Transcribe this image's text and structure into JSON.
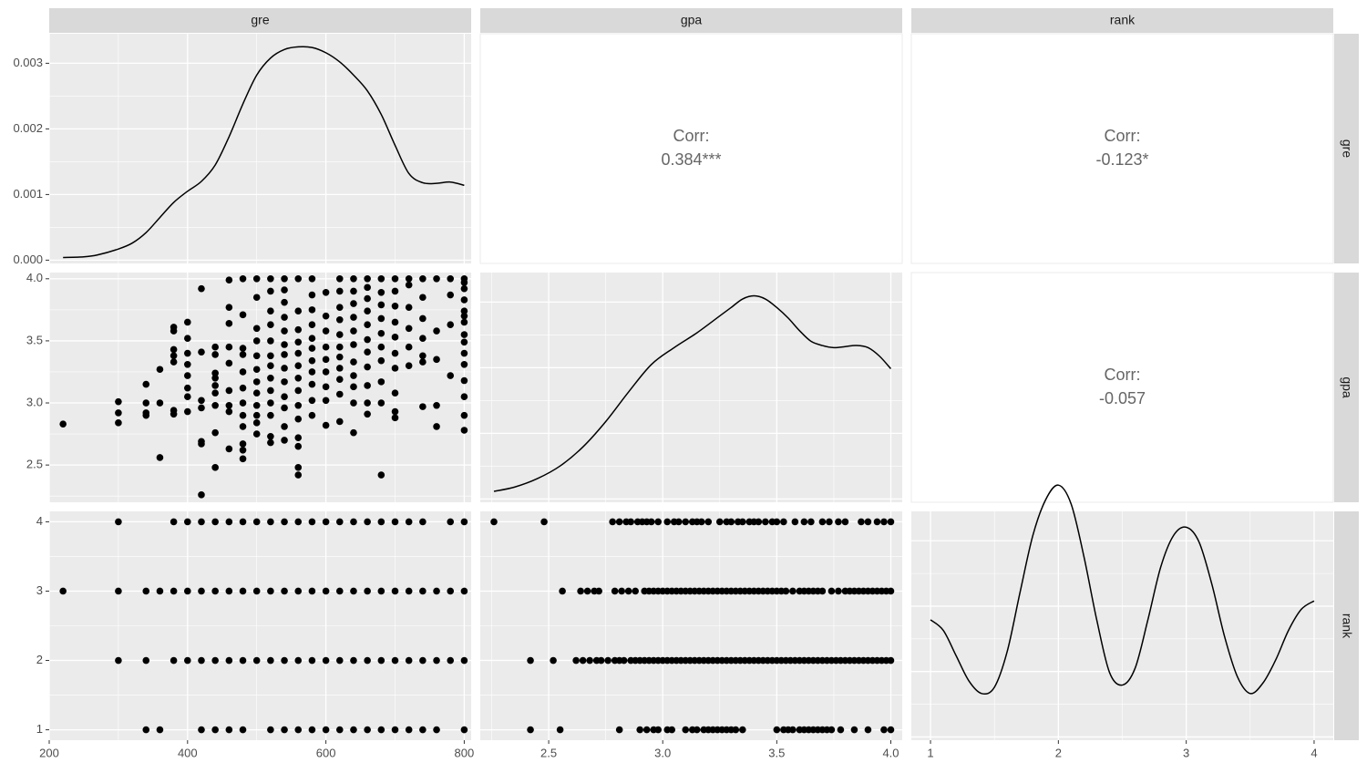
{
  "chart_data": {
    "type": "scatter",
    "variables": [
      "gre",
      "gpa",
      "rank"
    ],
    "column_strips": [
      "gre",
      "gpa",
      "rank"
    ],
    "row_strips": [
      "gre",
      "gpa",
      "rank"
    ],
    "panel_background": "#ebebeb",
    "strip_background": "#d9d9d9",
    "corr_text_color": "#666666",
    "axes": {
      "gre": {
        "range": [
          200,
          810
        ],
        "ticks": [
          200,
          400,
          600,
          800
        ],
        "tick_labels": [
          "200",
          "400",
          "600",
          "800"
        ]
      },
      "gpa": {
        "range": [
          2.2,
          4.05
        ],
        "ticks": [
          2.5,
          3.0,
          3.5,
          4.0
        ],
        "tick_labels": [
          "2.5",
          "3.0",
          "3.5",
          "4.0"
        ]
      },
      "rank": {
        "range": [
          0.85,
          4.15
        ],
        "ticks": [
          1,
          2,
          3,
          4
        ],
        "tick_labels": [
          "1",
          "2",
          "3",
          "4"
        ]
      }
    },
    "density_axis": {
      "range": [
        -5e-05,
        0.00345
      ],
      "ticks": [
        0,
        0.001,
        0.002,
        0.003
      ],
      "tick_labels": [
        "0.000",
        "0.001",
        "0.002",
        "0.003"
      ]
    },
    "correlations": [
      {
        "row": "gre",
        "col": "gpa",
        "label": "Corr:",
        "value": "0.384***"
      },
      {
        "row": "gre",
        "col": "rank",
        "label": "Corr:",
        "value": "-0.123*"
      },
      {
        "row": "gpa",
        "col": "rank",
        "label": "Corr:",
        "value": "-0.057"
      }
    ],
    "densities": {
      "gre": {
        "x": [
          220,
          250,
          270,
          300,
          320,
          340,
          360,
          380,
          400,
          420,
          440,
          460,
          480,
          500,
          520,
          540,
          560,
          580,
          600,
          620,
          640,
          660,
          680,
          700,
          720,
          740,
          760,
          780,
          800
        ],
        "y": [
          4e-05,
          5e-05,
          8e-05,
          0.00017,
          0.00026,
          0.00042,
          0.00065,
          0.00088,
          0.00105,
          0.0012,
          0.00145,
          0.00188,
          0.00238,
          0.00282,
          0.00308,
          0.00321,
          0.00325,
          0.00324,
          0.00316,
          0.00302,
          0.00282,
          0.00258,
          0.00222,
          0.00175,
          0.00132,
          0.00118,
          0.00117,
          0.00119,
          0.00114
        ]
      },
      "gpa": {
        "x": [
          2.26,
          2.35,
          2.45,
          2.55,
          2.65,
          2.75,
          2.85,
          2.95,
          3.05,
          3.15,
          3.25,
          3.3,
          3.35,
          3.4,
          3.45,
          3.5,
          3.55,
          3.6,
          3.65,
          3.7,
          3.75,
          3.8,
          3.85,
          3.9,
          3.95,
          4.0
        ],
        "y": [
          0.03,
          0.05,
          0.09,
          0.15,
          0.24,
          0.36,
          0.5,
          0.63,
          0.71,
          0.78,
          0.86,
          0.9,
          0.94,
          0.955,
          0.94,
          0.9,
          0.85,
          0.79,
          0.74,
          0.72,
          0.71,
          0.715,
          0.72,
          0.71,
          0.67,
          0.61
        ]
      },
      "rank": {
        "x": [
          1.0,
          1.1,
          1.2,
          1.3,
          1.4,
          1.5,
          1.6,
          1.7,
          1.8,
          1.9,
          2.0,
          2.1,
          2.2,
          2.3,
          2.4,
          2.5,
          2.6,
          2.7,
          2.8,
          2.9,
          3.0,
          3.1,
          3.2,
          3.3,
          3.4,
          3.5,
          3.6,
          3.7,
          3.8,
          3.9,
          4.0
        ],
        "y": [
          0.55,
          0.5,
          0.38,
          0.26,
          0.2,
          0.23,
          0.4,
          0.68,
          0.95,
          1.12,
          1.19,
          1.1,
          0.85,
          0.55,
          0.3,
          0.24,
          0.32,
          0.55,
          0.8,
          0.95,
          0.99,
          0.92,
          0.72,
          0.47,
          0.28,
          0.2,
          0.25,
          0.36,
          0.5,
          0.6,
          0.64
        ]
      }
    },
    "gre_values": [
      220,
      300,
      340,
      360,
      380,
      400,
      420,
      440,
      460,
      480,
      500,
      520,
      540,
      560,
      580,
      600,
      620,
      640,
      660,
      680,
      700,
      720,
      740,
      760,
      780,
      800
    ],
    "gpa_values_rank4": [
      2.26,
      2.48,
      2.78,
      2.81,
      2.84,
      2.86,
      2.89,
      2.91,
      2.93,
      2.95,
      2.98,
      3.02,
      3.05,
      3.07,
      3.1,
      3.13,
      3.15,
      3.17,
      3.2,
      3.25,
      3.28,
      3.3,
      3.33,
      3.35,
      3.38,
      3.4,
      3.42,
      3.45,
      3.48,
      3.5,
      3.53,
      3.58,
      3.62,
      3.65,
      3.7,
      3.73,
      3.77,
      3.8,
      3.87,
      3.9,
      3.94,
      3.97,
      4.0
    ],
    "gpa_values_rank3": [
      2.56,
      2.64,
      2.67,
      2.7,
      2.72,
      2.79,
      2.82,
      2.85,
      2.88,
      2.92,
      2.94,
      2.96,
      2.98,
      3.0,
      3.02,
      3.04,
      3.06,
      3.08,
      3.1,
      3.12,
      3.14,
      3.16,
      3.18,
      3.2,
      3.22,
      3.24,
      3.26,
      3.28,
      3.3,
      3.32,
      3.34,
      3.36,
      3.38,
      3.4,
      3.42,
      3.44,
      3.46,
      3.48,
      3.5,
      3.52,
      3.54,
      3.57,
      3.6,
      3.62,
      3.64,
      3.66,
      3.68,
      3.7,
      3.74,
      3.77,
      3.8,
      3.82,
      3.84,
      3.86,
      3.88,
      3.9,
      3.92,
      3.94,
      3.96,
      3.98,
      4.0
    ],
    "gpa_values_rank2": [
      2.42,
      2.52,
      2.62,
      2.65,
      2.68,
      2.71,
      2.73,
      2.76,
      2.79,
      2.81,
      2.83,
      2.86,
      2.88,
      2.9,
      2.92,
      2.94,
      2.96,
      2.98,
      3.0,
      3.02,
      3.04,
      3.06,
      3.08,
      3.1,
      3.12,
      3.14,
      3.16,
      3.18,
      3.2,
      3.22,
      3.24,
      3.26,
      3.28,
      3.3,
      3.32,
      3.34,
      3.36,
      3.38,
      3.4,
      3.42,
      3.44,
      3.46,
      3.48,
      3.5,
      3.52,
      3.54,
      3.56,
      3.58,
      3.6,
      3.62,
      3.64,
      3.66,
      3.68,
      3.7,
      3.72,
      3.74,
      3.76,
      3.78,
      3.8,
      3.82,
      3.84,
      3.86,
      3.88,
      3.9,
      3.92,
      3.94,
      3.96,
      3.98,
      4.0
    ],
    "gpa_values_rank1": [
      2.42,
      2.55,
      2.81,
      2.9,
      2.93,
      2.96,
      2.98,
      3.02,
      3.04,
      3.1,
      3.13,
      3.15,
      3.18,
      3.2,
      3.22,
      3.24,
      3.26,
      3.28,
      3.3,
      3.32,
      3.35,
      3.5,
      3.53,
      3.55,
      3.57,
      3.6,
      3.62,
      3.64,
      3.66,
      3.68,
      3.7,
      3.72,
      3.74,
      3.78,
      3.84,
      3.9,
      3.97,
      4.0
    ],
    "gre_values_rank4": [
      300,
      380,
      400,
      420,
      440,
      460,
      480,
      500,
      520,
      540,
      560,
      580,
      600,
      620,
      640,
      660,
      680,
      700,
      720,
      740,
      780,
      800
    ],
    "gre_values_rank3": [
      220,
      300,
      340,
      360,
      380,
      400,
      420,
      440,
      460,
      480,
      500,
      520,
      540,
      560,
      580,
      600,
      620,
      640,
      660,
      680,
      700,
      720,
      740,
      760,
      780,
      800
    ],
    "gre_values_rank2": [
      300,
      340,
      380,
      400,
      420,
      440,
      460,
      480,
      500,
      520,
      540,
      560,
      580,
      600,
      620,
      640,
      660,
      680,
      700,
      720,
      740,
      760,
      780,
      800
    ],
    "gre_values_rank1": [
      340,
      360,
      420,
      440,
      460,
      480,
      520,
      540,
      560,
      580,
      600,
      620,
      640,
      660,
      680,
      700,
      720,
      740,
      760,
      800
    ],
    "gre_gpa_points": [
      [
        220,
        2.83
      ],
      [
        300,
        3.01
      ],
      [
        300,
        2.92
      ],
      [
        300,
        2.84
      ],
      [
        340,
        3.15
      ],
      [
        340,
        3.0
      ],
      [
        340,
        2.92
      ],
      [
        340,
        2.9
      ],
      [
        360,
        3.27
      ],
      [
        360,
        3.0
      ],
      [
        360,
        2.56
      ],
      [
        380,
        3.61
      ],
      [
        380,
        3.58
      ],
      [
        380,
        3.43
      ],
      [
        380,
        3.38
      ],
      [
        380,
        3.33
      ],
      [
        380,
        2.94
      ],
      [
        380,
        2.91
      ],
      [
        400,
        3.65
      ],
      [
        400,
        3.52
      ],
      [
        400,
        3.4
      ],
      [
        400,
        3.31
      ],
      [
        400,
        3.22
      ],
      [
        400,
        3.12
      ],
      [
        400,
        3.05
      ],
      [
        400,
        2.93
      ],
      [
        420,
        3.92
      ],
      [
        420,
        3.41
      ],
      [
        420,
        3.02
      ],
      [
        420,
        2.96
      ],
      [
        420,
        2.69
      ],
      [
        420,
        2.67
      ],
      [
        420,
        2.26
      ],
      [
        440,
        3.45
      ],
      [
        440,
        3.39
      ],
      [
        440,
        3.24
      ],
      [
        440,
        3.2
      ],
      [
        440,
        3.14
      ],
      [
        440,
        3.08
      ],
      [
        440,
        2.98
      ],
      [
        440,
        2.76
      ],
      [
        440,
        2.48
      ],
      [
        460,
        3.99
      ],
      [
        460,
        3.77
      ],
      [
        460,
        3.64
      ],
      [
        460,
        3.45
      ],
      [
        460,
        3.32
      ],
      [
        460,
        3.1
      ],
      [
        460,
        2.98
      ],
      [
        460,
        2.93
      ],
      [
        460,
        2.63
      ],
      [
        480,
        4.0
      ],
      [
        480,
        3.71
      ],
      [
        480,
        3.44
      ],
      [
        480,
        3.39
      ],
      [
        480,
        3.25
      ],
      [
        480,
        3.12
      ],
      [
        480,
        3.0
      ],
      [
        480,
        2.9
      ],
      [
        480,
        2.81
      ],
      [
        480,
        2.67
      ],
      [
        480,
        2.62
      ],
      [
        480,
        2.55
      ],
      [
        500,
        4.0
      ],
      [
        500,
        3.85
      ],
      [
        500,
        3.6
      ],
      [
        500,
        3.5
      ],
      [
        500,
        3.38
      ],
      [
        500,
        3.27
      ],
      [
        500,
        3.17
      ],
      [
        500,
        3.08
      ],
      [
        500,
        2.98
      ],
      [
        500,
        2.9
      ],
      [
        500,
        2.84
      ],
      [
        500,
        2.75
      ],
      [
        520,
        4.0
      ],
      [
        520,
        3.9
      ],
      [
        520,
        3.74
      ],
      [
        520,
        3.63
      ],
      [
        520,
        3.5
      ],
      [
        520,
        3.38
      ],
      [
        520,
        3.3
      ],
      [
        520,
        3.2
      ],
      [
        520,
        3.1
      ],
      [
        520,
        3.0
      ],
      [
        520,
        2.9
      ],
      [
        520,
        2.73
      ],
      [
        520,
        2.68
      ],
      [
        540,
        4.0
      ],
      [
        540,
        3.91
      ],
      [
        540,
        3.81
      ],
      [
        540,
        3.69
      ],
      [
        540,
        3.58
      ],
      [
        540,
        3.47
      ],
      [
        540,
        3.39
      ],
      [
        540,
        3.28
      ],
      [
        540,
        3.17
      ],
      [
        540,
        3.05
      ],
      [
        540,
        2.96
      ],
      [
        540,
        2.81
      ],
      [
        540,
        2.7
      ],
      [
        560,
        4.0
      ],
      [
        560,
        3.74
      ],
      [
        560,
        3.59
      ],
      [
        560,
        3.49
      ],
      [
        560,
        3.4
      ],
      [
        560,
        3.3
      ],
      [
        560,
        3.2
      ],
      [
        560,
        3.1
      ],
      [
        560,
        2.98
      ],
      [
        560,
        2.87
      ],
      [
        560,
        2.72
      ],
      [
        560,
        2.65
      ],
      [
        560,
        2.48
      ],
      [
        560,
        2.42
      ],
      [
        580,
        4.0
      ],
      [
        580,
        3.87
      ],
      [
        580,
        3.75
      ],
      [
        580,
        3.63
      ],
      [
        580,
        3.52
      ],
      [
        580,
        3.44
      ],
      [
        580,
        3.34
      ],
      [
        580,
        3.25
      ],
      [
        580,
        3.15
      ],
      [
        580,
        3.02
      ],
      [
        580,
        2.9
      ],
      [
        600,
        3.89
      ],
      [
        600,
        3.7
      ],
      [
        600,
        3.58
      ],
      [
        600,
        3.45
      ],
      [
        600,
        3.35
      ],
      [
        600,
        3.25
      ],
      [
        600,
        3.13
      ],
      [
        600,
        3.02
      ],
      [
        600,
        2.82
      ],
      [
        620,
        4.0
      ],
      [
        620,
        3.9
      ],
      [
        620,
        3.77
      ],
      [
        620,
        3.67
      ],
      [
        620,
        3.55
      ],
      [
        620,
        3.45
      ],
      [
        620,
        3.37
      ],
      [
        620,
        3.28
      ],
      [
        620,
        3.19
      ],
      [
        620,
        3.07
      ],
      [
        620,
        2.85
      ],
      [
        640,
        4.0
      ],
      [
        640,
        3.9
      ],
      [
        640,
        3.8
      ],
      [
        640,
        3.69
      ],
      [
        640,
        3.58
      ],
      [
        640,
        3.47
      ],
      [
        640,
        3.33
      ],
      [
        640,
        3.22
      ],
      [
        640,
        3.13
      ],
      [
        640,
        3.0
      ],
      [
        640,
        2.76
      ],
      [
        660,
        4.0
      ],
      [
        660,
        3.93
      ],
      [
        660,
        3.84
      ],
      [
        660,
        3.74
      ],
      [
        660,
        3.63
      ],
      [
        660,
        3.51
      ],
      [
        660,
        3.41
      ],
      [
        660,
        3.29
      ],
      [
        660,
        3.14
      ],
      [
        660,
        3.0
      ],
      [
        660,
        2.91
      ],
      [
        680,
        4.0
      ],
      [
        680,
        3.89
      ],
      [
        680,
        3.79
      ],
      [
        680,
        3.68
      ],
      [
        680,
        3.56
      ],
      [
        680,
        3.45
      ],
      [
        680,
        3.34
      ],
      [
        680,
        3.17
      ],
      [
        680,
        3.0
      ],
      [
        680,
        2.42
      ],
      [
        700,
        4.0
      ],
      [
        700,
        3.9
      ],
      [
        700,
        3.78
      ],
      [
        700,
        3.65
      ],
      [
        700,
        3.53
      ],
      [
        700,
        3.4
      ],
      [
        700,
        3.28
      ],
      [
        700,
        3.08
      ],
      [
        700,
        2.93
      ],
      [
        700,
        2.88
      ],
      [
        720,
        4.0
      ],
      [
        720,
        3.95
      ],
      [
        720,
        3.77
      ],
      [
        720,
        3.6
      ],
      [
        720,
        3.45
      ],
      [
        720,
        3.3
      ],
      [
        740,
        4.0
      ],
      [
        740,
        3.85
      ],
      [
        740,
        3.68
      ],
      [
        740,
        3.52
      ],
      [
        740,
        3.38
      ],
      [
        740,
        3.33
      ],
      [
        740,
        2.97
      ],
      [
        760,
        4.0
      ],
      [
        760,
        3.58
      ],
      [
        760,
        3.35
      ],
      [
        760,
        2.98
      ],
      [
        760,
        2.81
      ],
      [
        780,
        4.0
      ],
      [
        780,
        3.87
      ],
      [
        780,
        3.63
      ],
      [
        780,
        3.22
      ],
      [
        800,
        4.0
      ],
      [
        800,
        3.97
      ],
      [
        800,
        3.92
      ],
      [
        800,
        3.83
      ],
      [
        800,
        3.74
      ],
      [
        800,
        3.7
      ],
      [
        800,
        3.65
      ],
      [
        800,
        3.55
      ],
      [
        800,
        3.49
      ],
      [
        800,
        3.4
      ],
      [
        800,
        3.31
      ],
      [
        800,
        3.18
      ],
      [
        800,
        3.05
      ],
      [
        800,
        2.9
      ],
      [
        800,
        2.78
      ]
    ]
  }
}
